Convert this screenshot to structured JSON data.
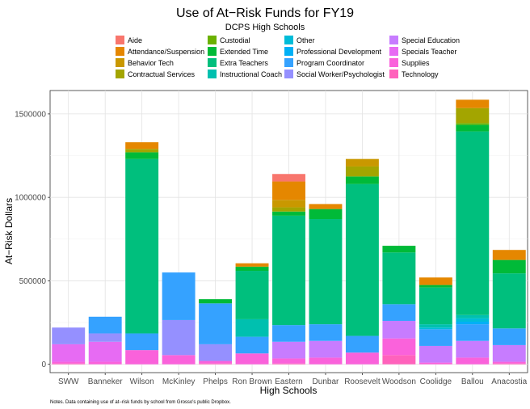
{
  "chart_data": {
    "type": "stacked-bar",
    "title": "Use of At−Risk Funds for FY19",
    "subtitle": "DCPS High Schools",
    "xlabel": "High Schools",
    "ylabel": "At−Risk Dollars",
    "note": "Notes. Data containing use of at−risk funds by school from Grosso's public Dropbox.",
    "ylim": [
      -50000,
      1640000
    ],
    "yticks": [
      0,
      500000,
      1000000,
      1500000
    ],
    "ytick_labels": [
      "0",
      "500000",
      "1000000",
      "1500000"
    ],
    "categories": [
      "SWW",
      "Banneker",
      "Wilson",
      "McKinley",
      "Phelps",
      "Ron Brown",
      "Eastern",
      "Dunbar",
      "Roosevelt",
      "Woodson",
      "Coolidge",
      "Ballou",
      "Anacostia"
    ],
    "legend_order": [
      "Aide",
      "Attendance/Suspension",
      "Behavior Tech",
      "Contractual Services",
      "Custodial",
      "Extended Time",
      "Extra Teachers",
      "Instructional Coach",
      "Other",
      "Professional Development",
      "Program Coordinator",
      "Social Worker/Psychologist",
      "Special Education",
      "Specials Teacher",
      "Supplies",
      "Technology"
    ],
    "series": [
      {
        "name": "Aide",
        "color": "#F8766D",
        "values": [
          0,
          0,
          0,
          0,
          0,
          0,
          45000,
          0,
          0,
          0,
          0,
          0,
          0
        ]
      },
      {
        "name": "Attendance/Suspension",
        "color": "#E58700",
        "values": [
          0,
          0,
          40000,
          0,
          0,
          20000,
          110000,
          30000,
          0,
          0,
          45000,
          50000,
          60000
        ]
      },
      {
        "name": "Behavior Tech",
        "color": "#C99800",
        "values": [
          0,
          0,
          0,
          0,
          0,
          0,
          45000,
          0,
          45000,
          0,
          0,
          0,
          0
        ]
      },
      {
        "name": "Contractual Services",
        "color": "#A3A500",
        "values": [
          0,
          0,
          20000,
          0,
          0,
          0,
          25000,
          0,
          60000,
          0,
          0,
          90000,
          0
        ]
      },
      {
        "name": "Custodial",
        "color": "#6BB100",
        "values": [
          0,
          0,
          0,
          0,
          0,
          0,
          0,
          0,
          0,
          0,
          0,
          10000,
          0
        ]
      },
      {
        "name": "Extended Time",
        "color": "#00BA38",
        "values": [
          0,
          0,
          40000,
          0,
          25000,
          25000,
          25000,
          60000,
          45000,
          40000,
          15000,
          40000,
          80000
        ]
      },
      {
        "name": "Extra Teachers",
        "color": "#00BF7D",
        "values": [
          0,
          0,
          1045000,
          0,
          0,
          290000,
          655000,
          630000,
          910000,
          310000,
          220000,
          1100000,
          330000
        ]
      },
      {
        "name": "Instructional Coach",
        "color": "#00C0AF",
        "values": [
          0,
          0,
          0,
          0,
          0,
          105000,
          0,
          0,
          0,
          0,
          20000,
          20000,
          0
        ]
      },
      {
        "name": "Other",
        "color": "#00BCD8",
        "values": [
          0,
          0,
          0,
          0,
          0,
          0,
          0,
          0,
          0,
          0,
          10000,
          20000,
          0
        ]
      },
      {
        "name": "Professional Development",
        "color": "#00B0F6",
        "values": [
          0,
          0,
          0,
          0,
          0,
          0,
          0,
          0,
          0,
          0,
          0,
          15000,
          0
        ]
      },
      {
        "name": "Program Coordinator",
        "color": "#35A2FF",
        "values": [
          0,
          100000,
          100000,
          285000,
          245000,
          100000,
          100000,
          100000,
          100000,
          100000,
          100000,
          100000,
          100000
        ]
      },
      {
        "name": "Social Worker/Psychologist",
        "color": "#9590FF",
        "values": [
          100000,
          50000,
          0,
          210000,
          100000,
          0,
          0,
          0,
          0,
          0,
          0,
          0,
          0
        ]
      },
      {
        "name": "Special Education",
        "color": "#C77CFF",
        "values": [
          0,
          0,
          0,
          0,
          0,
          0,
          100000,
          100000,
          0,
          105000,
          100000,
          100000,
          100000
        ]
      },
      {
        "name": "Specials Teacher",
        "color": "#E76BF3",
        "values": [
          105000,
          120000,
          0,
          0,
          0,
          0,
          0,
          0,
          0,
          0,
          0,
          0,
          0
        ]
      },
      {
        "name": "Supplies",
        "color": "#FA62DB",
        "values": [
          10000,
          15000,
          85000,
          55000,
          15000,
          65000,
          30000,
          40000,
          70000,
          100000,
          10000,
          40000,
          10000
        ]
      },
      {
        "name": "Technology",
        "color": "#FF62BC",
        "values": [
          5000,
          0,
          0,
          0,
          5000,
          0,
          5000,
          0,
          0,
          55000,
          0,
          0,
          5000
        ]
      }
    ]
  }
}
